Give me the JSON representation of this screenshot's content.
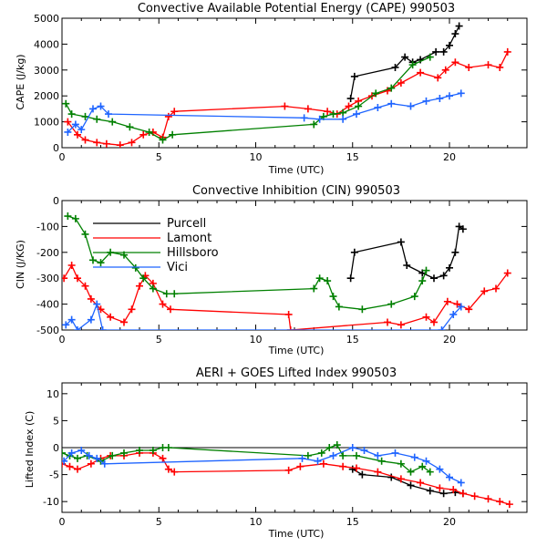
{
  "chart_data": [
    {
      "type": "line",
      "title": "Convective Available Potential Energy (CAPE) 990503",
      "xlabel": "Time (UTC)",
      "ylabel": "CAPE (J/kg)",
      "xlim": [
        0,
        24
      ],
      "ylim": [
        0,
        5000
      ],
      "xticks": [
        0,
        5,
        10,
        15,
        20
      ],
      "yticks": [
        0,
        1000,
        2000,
        3000,
        4000,
        5000
      ],
      "series": [
        {
          "name": "Purcell",
          "color": "#000000",
          "points": [
            [
              14.9,
              1900
            ],
            [
              15.1,
              2750
            ],
            [
              17.2,
              3100
            ],
            [
              17.7,
              3500
            ],
            [
              18.1,
              3300
            ],
            [
              18.5,
              3400
            ],
            [
              19.3,
              3700
            ],
            [
              19.7,
              3700
            ],
            [
              20.0,
              3950
            ],
            [
              20.3,
              4400
            ],
            [
              20.5,
              4700
            ]
          ]
        },
        {
          "name": "Lamont",
          "color": "#ff0000",
          "points": [
            [
              0.3,
              1000
            ],
            [
              0.8,
              500
            ],
            [
              1.2,
              300
            ],
            [
              1.8,
              200
            ],
            [
              2.3,
              150
            ],
            [
              3.0,
              100
            ],
            [
              3.6,
              200
            ],
            [
              4.2,
              500
            ],
            [
              4.7,
              600
            ],
            [
              5.2,
              400
            ],
            [
              5.5,
              1200
            ],
            [
              5.8,
              1400
            ],
            [
              11.5,
              1600
            ],
            [
              12.7,
              1500
            ],
            [
              13.7,
              1400
            ],
            [
              14.2,
              1300
            ],
            [
              14.8,
              1600
            ],
            [
              15.3,
              1800
            ],
            [
              16.0,
              2000
            ],
            [
              16.8,
              2200
            ],
            [
              17.5,
              2500
            ],
            [
              18.5,
              2900
            ],
            [
              19.4,
              2700
            ],
            [
              19.8,
              3000
            ],
            [
              20.3,
              3300
            ],
            [
              21.0,
              3100
            ],
            [
              22.0,
              3200
            ],
            [
              22.6,
              3100
            ],
            [
              23.0,
              3700
            ]
          ]
        },
        {
          "name": "Hillsboro",
          "color": "#008000",
          "points": [
            [
              0.2,
              1700
            ],
            [
              0.5,
              1300
            ],
            [
              1.2,
              1200
            ],
            [
              1.8,
              1100
            ],
            [
              2.6,
              1000
            ],
            [
              3.5,
              800
            ],
            [
              4.5,
              600
            ],
            [
              5.2,
              300
            ],
            [
              5.7,
              500
            ],
            [
              13.0,
              900
            ],
            [
              13.5,
              1200
            ],
            [
              14.0,
              1300
            ],
            [
              14.5,
              1350
            ],
            [
              15.3,
              1600
            ],
            [
              16.2,
              2100
            ],
            [
              17.0,
              2300
            ],
            [
              18.1,
              3200
            ],
            [
              19.0,
              3500
            ]
          ]
        },
        {
          "name": "Vici",
          "color": "#1e64ff",
          "points": [
            [
              0.3,
              600
            ],
            [
              0.7,
              900
            ],
            [
              1.0,
              700
            ],
            [
              1.6,
              1500
            ],
            [
              2.0,
              1600
            ],
            [
              2.4,
              1300
            ],
            [
              12.5,
              1150
            ],
            [
              13.3,
              1100
            ],
            [
              14.5,
              1100
            ],
            [
              15.2,
              1300
            ],
            [
              16.3,
              1550
            ],
            [
              17.0,
              1700
            ],
            [
              18.0,
              1600
            ],
            [
              18.8,
              1800
            ],
            [
              19.5,
              1900
            ],
            [
              20.0,
              2000
            ],
            [
              20.6,
              2100
            ]
          ]
        }
      ]
    },
    {
      "type": "line",
      "title": "Convective Inhibition (CIN) 990503",
      "xlabel": "Time (UTC)",
      "ylabel": "CIN (J/KG)",
      "xlim": [
        0,
        24
      ],
      "ylim": [
        -500,
        0
      ],
      "xticks": [
        0,
        5,
        10,
        15,
        20
      ],
      "yticks": [
        0,
        -100,
        -200,
        -300,
        -400,
        -500
      ],
      "legend_position": "upper-left",
      "series": [
        {
          "name": "Purcell",
          "color": "#000000",
          "points": [
            [
              14.9,
              -300
            ],
            [
              15.1,
              -200
            ],
            [
              17.5,
              -160
            ],
            [
              17.8,
              -250
            ],
            [
              18.6,
              -280
            ],
            [
              19.2,
              -300
            ],
            [
              19.7,
              -290
            ],
            [
              20.0,
              -260
            ],
            [
              20.3,
              -200
            ],
            [
              20.5,
              -100
            ],
            [
              20.7,
              -110
            ]
          ]
        },
        {
          "name": "Lamont",
          "color": "#ff0000",
          "points": [
            [
              0.1,
              -300
            ],
            [
              0.5,
              -250
            ],
            [
              0.8,
              -300
            ],
            [
              1.2,
              -330
            ],
            [
              1.5,
              -380
            ],
            [
              2.0,
              -420
            ],
            [
              2.5,
              -450
            ],
            [
              3.2,
              -470
            ],
            [
              3.6,
              -420
            ],
            [
              4.0,
              -330
            ],
            [
              4.3,
              -290
            ],
            [
              4.7,
              -320
            ],
            [
              5.2,
              -400
            ],
            [
              5.6,
              -420
            ],
            [
              11.7,
              -440
            ],
            [
              11.8,
              -500
            ],
            [
              16.8,
              -470
            ],
            [
              17.5,
              -480
            ],
            [
              18.8,
              -450
            ],
            [
              19.2,
              -470
            ],
            [
              19.9,
              -390
            ],
            [
              20.4,
              -400
            ],
            [
              21.0,
              -420
            ],
            [
              21.8,
              -350
            ],
            [
              22.4,
              -340
            ],
            [
              23.0,
              -280
            ]
          ]
        },
        {
          "name": "Hillsboro",
          "color": "#008000",
          "points": [
            [
              0.3,
              -60
            ],
            [
              0.7,
              -70
            ],
            [
              1.2,
              -130
            ],
            [
              1.6,
              -230
            ],
            [
              2.0,
              -240
            ],
            [
              2.5,
              -200
            ],
            [
              3.2,
              -210
            ],
            [
              3.8,
              -260
            ],
            [
              4.2,
              -300
            ],
            [
              4.7,
              -340
            ],
            [
              5.4,
              -360
            ],
            [
              5.8,
              -360
            ],
            [
              13.0,
              -340
            ],
            [
              13.3,
              -300
            ],
            [
              13.7,
              -310
            ],
            [
              14.0,
              -370
            ],
            [
              14.3,
              -410
            ],
            [
              15.5,
              -420
            ],
            [
              17.0,
              -400
            ],
            [
              18.2,
              -370
            ],
            [
              18.6,
              -310
            ],
            [
              18.8,
              -270
            ]
          ]
        },
        {
          "name": "Vici",
          "color": "#1e64ff",
          "points": [
            [
              0.2,
              -480
            ],
            [
              0.5,
              -460
            ],
            [
              0.8,
              -500
            ],
            [
              1.5,
              -460
            ],
            [
              1.8,
              -400
            ],
            [
              2.1,
              -500
            ],
            [
              19.6,
              -500
            ],
            [
              20.2,
              -440
            ],
            [
              20.6,
              -410
            ]
          ]
        }
      ]
    },
    {
      "type": "line",
      "title": "AERI + GOES Lifted Index 990503",
      "xlabel": "Time (UTC)",
      "ylabel": "Lifted Index (C)",
      "xlim": [
        0,
        24
      ],
      "ylim": [
        -12,
        12
      ],
      "xticks": [
        0,
        5,
        10,
        15,
        20
      ],
      "yticks": [
        10,
        5,
        0,
        -5,
        -10
      ],
      "reference_line": 0,
      "series": [
        {
          "name": "Purcell",
          "color": "#000000",
          "points": [
            [
              15.0,
              -4
            ],
            [
              15.5,
              -5
            ],
            [
              17.0,
              -5.5
            ],
            [
              18.0,
              -7
            ],
            [
              19.0,
              -8
            ],
            [
              19.7,
              -8.5
            ],
            [
              20.3,
              -8.3
            ],
            [
              20.7,
              -8.5
            ]
          ]
        },
        {
          "name": "Lamont",
          "color": "#ff0000",
          "points": [
            [
              0.0,
              -3
            ],
            [
              0.4,
              -3.5
            ],
            [
              0.8,
              -4
            ],
            [
              1.5,
              -3
            ],
            [
              2.0,
              -2
            ],
            [
              2.5,
              -1.5
            ],
            [
              3.2,
              -1.5
            ],
            [
              4.0,
              -1
            ],
            [
              4.7,
              -1
            ],
            [
              5.2,
              -2
            ],
            [
              5.5,
              -4
            ],
            [
              5.8,
              -4.5
            ],
            [
              11.7,
              -4.2
            ],
            [
              12.3,
              -3.5
            ],
            [
              13.5,
              -3
            ],
            [
              14.5,
              -3.5
            ],
            [
              15.2,
              -3.8
            ],
            [
              16.3,
              -4.5
            ],
            [
              17.5,
              -5.8
            ],
            [
              18.5,
              -6.5
            ],
            [
              19.5,
              -7.5
            ],
            [
              20.2,
              -7.8
            ],
            [
              20.7,
              -8.5
            ],
            [
              21.3,
              -9
            ],
            [
              22.0,
              -9.5
            ],
            [
              22.6,
              -10
            ],
            [
              23.1,
              -10.5
            ]
          ]
        },
        {
          "name": "Hillsboro",
          "color": "#008000",
          "points": [
            [
              0.0,
              -1
            ],
            [
              0.4,
              -1.5
            ],
            [
              0.8,
              -2
            ],
            [
              1.3,
              -1.5
            ],
            [
              2.0,
              -2.5
            ],
            [
              2.6,
              -1.5
            ],
            [
              3.2,
              -1
            ],
            [
              4.0,
              -0.5
            ],
            [
              4.7,
              -0.5
            ],
            [
              5.2,
              0
            ],
            [
              5.5,
              0
            ],
            [
              12.7,
              -1.5
            ],
            [
              13.4,
              -1
            ],
            [
              13.8,
              0
            ],
            [
              14.2,
              0.5
            ],
            [
              14.5,
              -1.5
            ],
            [
              15.2,
              -1.5
            ],
            [
              16.5,
              -2.5
            ],
            [
              17.5,
              -3
            ],
            [
              18.0,
              -4.5
            ],
            [
              18.6,
              -3.5
            ],
            [
              19.0,
              -4.5
            ]
          ]
        },
        {
          "name": "Vici",
          "color": "#1e64ff",
          "points": [
            [
              0.1,
              -2.5
            ],
            [
              0.5,
              -1
            ],
            [
              1.0,
              -0.5
            ],
            [
              1.4,
              -1.5
            ],
            [
              1.8,
              -2
            ],
            [
              2.2,
              -3
            ],
            [
              12.4,
              -2
            ],
            [
              13.2,
              -2.5
            ],
            [
              14.0,
              -1.5
            ],
            [
              15.0,
              0
            ],
            [
              15.6,
              -0.5
            ],
            [
              16.3,
              -1.5
            ],
            [
              17.2,
              -1
            ],
            [
              18.2,
              -1.8
            ],
            [
              18.8,
              -2.5
            ],
            [
              19.5,
              -4
            ],
            [
              20.0,
              -5.5
            ],
            [
              20.6,
              -6.5
            ]
          ]
        }
      ]
    }
  ]
}
